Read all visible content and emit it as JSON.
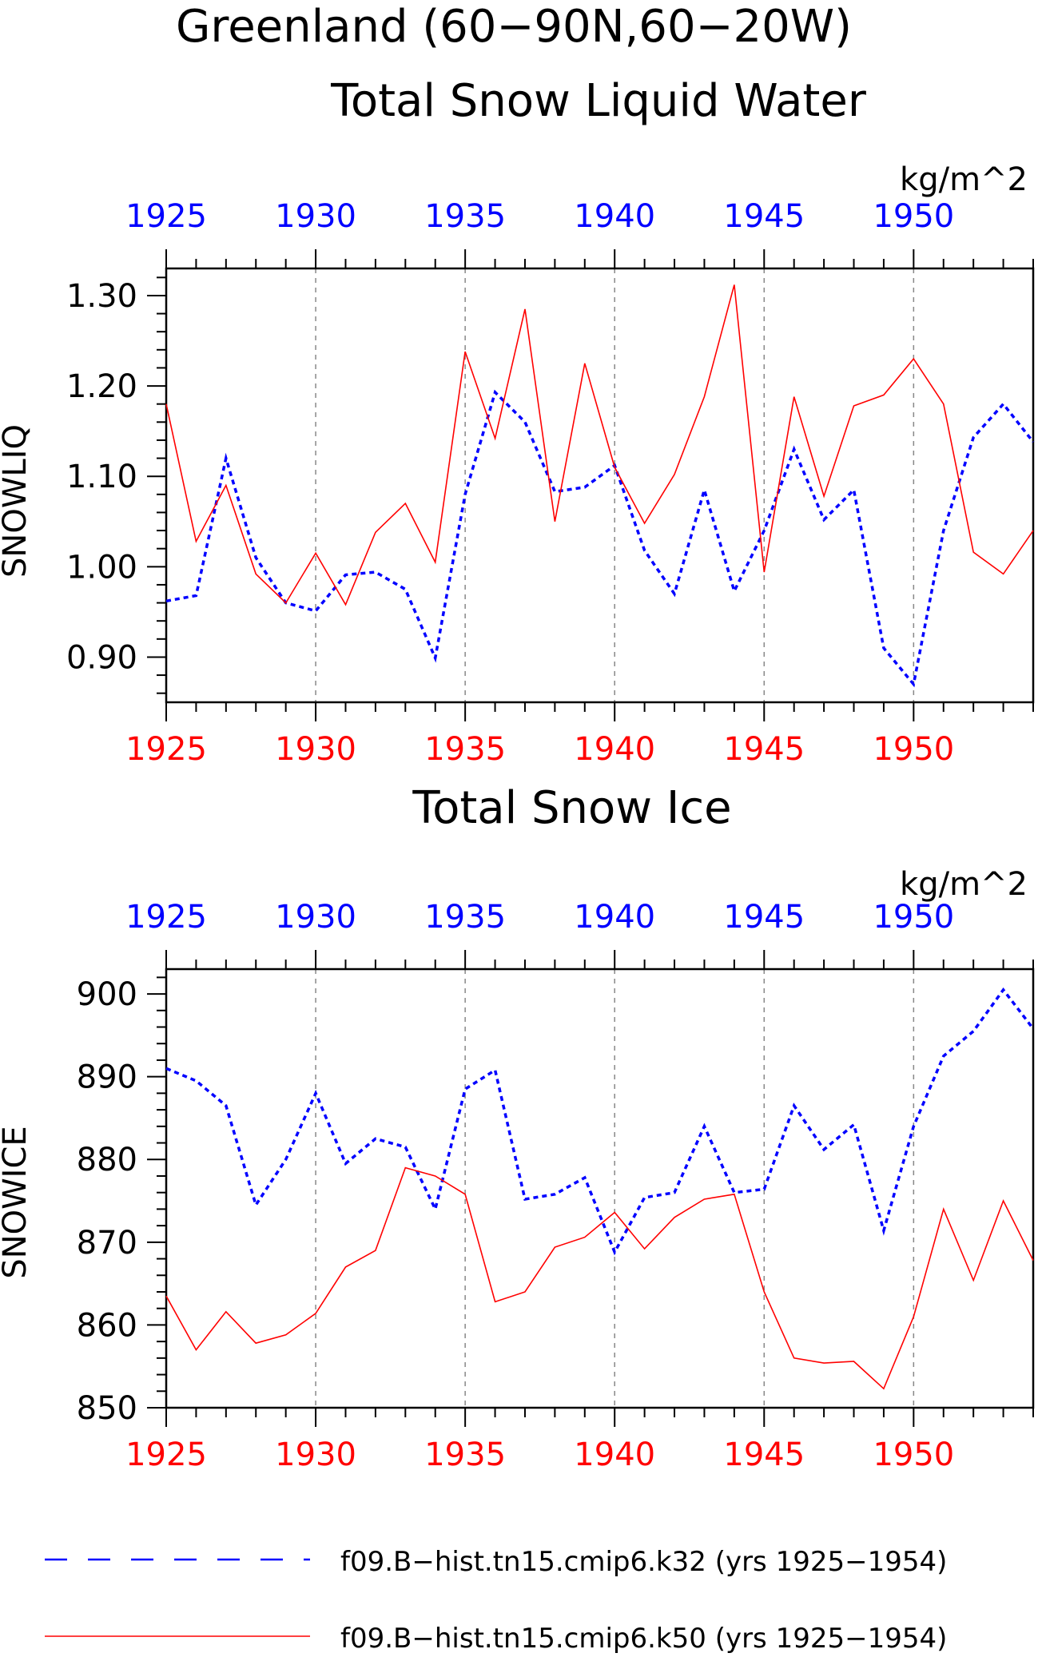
{
  "title_main": "Greenland (60−90N,60−20W)",
  "colors": {
    "k32": "#0000ff",
    "k50": "#ff0000",
    "axis": "#000000",
    "grid": "#888888"
  },
  "legend": {
    "k32": "f09.B−hist.tn15.cmip6.k32 (yrs 1925−1954)",
    "k50": "f09.B−hist.tn15.cmip6.k50 (yrs 1925−1954)"
  },
  "chart_data": [
    {
      "type": "line",
      "title": "Total Snow Liquid Water",
      "units": "kg/m^2",
      "ylabel": "SNOWLIQ",
      "xlim": [
        1925,
        1954
      ],
      "ylim": [
        0.85,
        1.33
      ],
      "yticks": [
        "0.90",
        "1.00",
        "1.10",
        "1.20",
        "1.30"
      ],
      "xticks": [
        "1925",
        "1930",
        "1935",
        "1940",
        "1945",
        "1950"
      ],
      "grid": "vertical dashed at major x ticks",
      "x": [
        1925,
        1926,
        1927,
        1928,
        1929,
        1930,
        1931,
        1932,
        1933,
        1934,
        1935,
        1936,
        1937,
        1938,
        1939,
        1940,
        1941,
        1942,
        1943,
        1944,
        1945,
        1946,
        1947,
        1948,
        1949,
        1950,
        1951,
        1952,
        1953,
        1954
      ],
      "series": [
        {
          "name": "f09.B−hist.tn15.cmip6.k32 (yrs 1925−1954)",
          "style": "dashed",
          "values": [
            0.962,
            0.968,
            1.12,
            1.01,
            0.96,
            0.951,
            0.991,
            0.994,
            0.975,
            0.899,
            1.08,
            1.193,
            1.16,
            1.083,
            1.088,
            1.112,
            1.018,
            0.97,
            1.085,
            0.973,
            1.04,
            1.13,
            1.052,
            1.085,
            0.91,
            0.87,
            1.04,
            1.143,
            1.18,
            1.138
          ]
        },
        {
          "name": "f09.B−hist.tn15.cmip6.k50 (yrs 1925−1954)",
          "style": "solid",
          "values": [
            1.18,
            1.028,
            1.09,
            0.992,
            0.96,
            1.015,
            0.958,
            1.038,
            1.07,
            1.005,
            1.238,
            1.142,
            1.285,
            1.05,
            1.225,
            1.11,
            1.048,
            1.102,
            1.188,
            1.312,
            0.994,
            1.188,
            1.078,
            1.178,
            1.19,
            1.23,
            1.18,
            1.016,
            0.992,
            1.04
          ]
        }
      ]
    },
    {
      "type": "line",
      "title": "Total Snow Ice",
      "units": "kg/m^2",
      "ylabel": "SNOWICE",
      "xlim": [
        1925,
        1954
      ],
      "ylim": [
        850,
        903
      ],
      "yticks": [
        "850",
        "860",
        "870",
        "880",
        "890",
        "900"
      ],
      "xticks": [
        "1925",
        "1930",
        "1935",
        "1940",
        "1945",
        "1950"
      ],
      "grid": "vertical dashed at major x ticks",
      "x": [
        1925,
        1926,
        1927,
        1928,
        1929,
        1930,
        1931,
        1932,
        1933,
        1934,
        1935,
        1936,
        1937,
        1938,
        1939,
        1940,
        1941,
        1942,
        1943,
        1944,
        1945,
        1946,
        1947,
        1948,
        1949,
        1950,
        1951,
        1952,
        1953,
        1954
      ],
      "series": [
        {
          "name": "f09.B−hist.tn15.cmip6.k32 (yrs 1925−1954)",
          "style": "dashed",
          "values": [
            891.0,
            889.5,
            886.5,
            874.5,
            880.0,
            888.0,
            879.5,
            882.5,
            881.5,
            874.0,
            888.5,
            890.8,
            875.2,
            875.8,
            877.8,
            868.8,
            875.4,
            876.0,
            884.0,
            876.0,
            876.4,
            886.5,
            881.2,
            884.2,
            871.4,
            884.0,
            892.5,
            895.5,
            900.5,
            895.8
          ]
        },
        {
          "name": "f09.B−hist.tn15.cmip6.k50 (yrs 1925−1954)",
          "style": "solid",
          "values": [
            863.5,
            857.0,
            861.6,
            857.8,
            858.8,
            861.4,
            867.0,
            869.0,
            879.0,
            878.0,
            875.8,
            862.8,
            864.0,
            869.4,
            870.6,
            873.6,
            869.2,
            873.0,
            875.2,
            875.8,
            864.0,
            856.0,
            855.4,
            855.6,
            852.3,
            861.0,
            874.0,
            865.4,
            875.0,
            867.8
          ]
        }
      ]
    }
  ]
}
